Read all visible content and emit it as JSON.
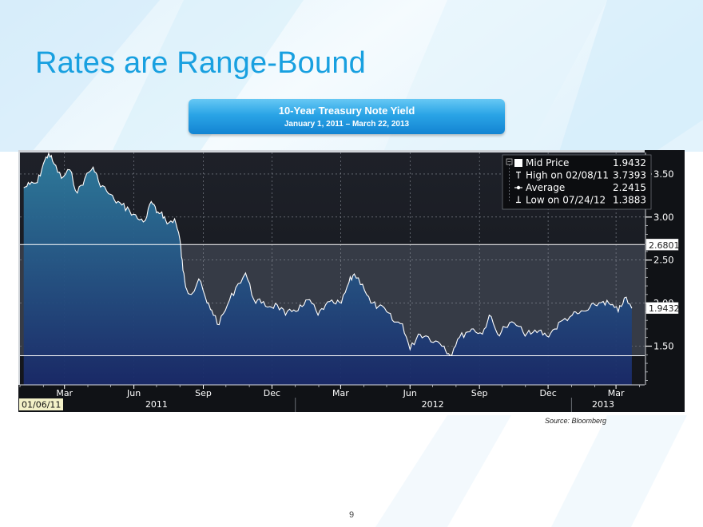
{
  "slide": {
    "title": "Rates are Range-Bound",
    "page_number": "9",
    "source": "Source: Bloomberg"
  },
  "banner": {
    "title": "10-Year Treasury Note Yield",
    "subtitle": "January 1, 2011 – March 22, 2013"
  },
  "colors": {
    "title": "#18a0e0",
    "banner": "#1e96dc",
    "chart_bg": "#1a1d24",
    "line": "#ffffff",
    "fill_top": "#2f7fa0",
    "fill_bottom": "#1a2a6a",
    "band": "#3a3f4a"
  },
  "chart_data": {
    "type": "area",
    "start_label": "01/06/11",
    "series": [
      {
        "name": "Mid Price",
        "x": [
          "2011-01-06",
          "2011-01-14",
          "2011-01-24",
          "2011-02-01",
          "2011-02-08",
          "2011-02-15",
          "2011-02-25",
          "2011-03-08",
          "2011-03-18",
          "2011-03-28",
          "2011-04-08",
          "2011-04-15",
          "2011-04-26",
          "2011-05-06",
          "2011-05-16",
          "2011-05-26",
          "2011-06-06",
          "2011-06-16",
          "2011-06-24",
          "2011-07-01",
          "2011-07-08",
          "2011-07-15",
          "2011-07-25",
          "2011-08-01",
          "2011-08-05",
          "2011-08-10",
          "2011-08-18",
          "2011-08-26",
          "2011-09-06",
          "2011-09-12",
          "2011-09-22",
          "2011-10-03",
          "2011-10-14",
          "2011-10-27",
          "2011-11-07",
          "2011-11-17",
          "2011-11-28",
          "2011-12-08",
          "2011-12-19",
          "2011-12-30",
          "2012-01-10",
          "2012-01-20",
          "2012-01-31",
          "2012-02-10",
          "2012-02-21",
          "2012-03-02",
          "2012-03-12",
          "2012-03-19",
          "2012-03-30",
          "2012-04-10",
          "2012-04-20",
          "2012-05-01",
          "2012-05-11",
          "2012-05-22",
          "2012-06-01",
          "2012-06-12",
          "2012-06-22",
          "2012-07-05",
          "2012-07-16",
          "2012-07-24",
          "2012-08-03",
          "2012-08-14",
          "2012-08-24",
          "2012-09-05",
          "2012-09-14",
          "2012-09-25",
          "2012-10-05",
          "2012-10-17",
          "2012-10-29",
          "2012-11-08",
          "2012-11-19",
          "2012-11-29",
          "2012-12-10",
          "2012-12-20",
          "2013-01-02",
          "2013-01-11",
          "2013-01-23",
          "2013-02-01",
          "2013-02-12",
          "2013-02-22",
          "2013-03-04",
          "2013-03-12",
          "2013-03-22"
        ],
        "values": [
          3.34,
          3.38,
          3.4,
          3.62,
          3.74,
          3.62,
          3.45,
          3.55,
          3.28,
          3.45,
          3.58,
          3.42,
          3.3,
          3.2,
          3.14,
          3.08,
          2.98,
          2.96,
          3.18,
          3.05,
          3.06,
          2.92,
          2.98,
          2.74,
          2.38,
          2.16,
          2.12,
          2.28,
          2.0,
          1.92,
          1.75,
          1.98,
          2.18,
          2.35,
          2.04,
          2.0,
          1.96,
          1.98,
          1.86,
          1.92,
          1.96,
          2.04,
          1.86,
          1.98,
          2.0,
          2.0,
          2.24,
          2.34,
          2.22,
          2.0,
          1.96,
          1.9,
          1.78,
          1.76,
          1.46,
          1.64,
          1.62,
          1.56,
          1.5,
          1.39,
          1.58,
          1.66,
          1.7,
          1.64,
          1.86,
          1.64,
          1.72,
          1.77,
          1.66,
          1.64,
          1.68,
          1.62,
          1.7,
          1.8,
          1.86,
          1.88,
          1.92,
          1.98,
          2.02,
          1.98,
          1.9,
          2.06,
          1.94
        ]
      }
    ],
    "x_ticks": [
      "Mar",
      "Jun",
      "Sep",
      "Dec",
      "Mar",
      "Jun",
      "Sep",
      "Dec",
      "Mar"
    ],
    "x_tick_dates": [
      "2011-03-01",
      "2011-06-01",
      "2011-09-01",
      "2011-12-01",
      "2012-03-01",
      "2012-06-01",
      "2012-09-01",
      "2012-12-01",
      "2013-03-01"
    ],
    "years": [
      {
        "label": "2011",
        "center": "2011-07-01"
      },
      {
        "label": "2012",
        "center": "2012-07-01"
      },
      {
        "label": "2013",
        "center": "2013-02-12"
      }
    ],
    "year_dividers": [
      "2012-01-01",
      "2013-01-01"
    ],
    "y_ticks": [
      "1.50",
      "2.00",
      "2.50",
      "3.00",
      "3.50"
    ],
    "ylim": [
      1.05,
      3.75
    ],
    "xlim": [
      "2011-01-01",
      "2013-04-08"
    ],
    "band": {
      "low": 1.3883,
      "high": 2.6801
    },
    "value_tags": [
      {
        "label": "2.6801",
        "value": 2.6801
      },
      {
        "label": "1.9432",
        "value": 1.9432
      }
    ],
    "legend": {
      "position": "top-right",
      "items": [
        {
          "marker": "square",
          "label": "Mid Price",
          "value": "1.9432"
        },
        {
          "marker": "high",
          "label": "High on 02/08/11",
          "value": "3.7393"
        },
        {
          "marker": "average",
          "label": "Average",
          "value": "2.2415"
        },
        {
          "marker": "low",
          "label": "Low on 07/24/12",
          "value": "1.3883"
        }
      ]
    },
    "grid": true
  }
}
